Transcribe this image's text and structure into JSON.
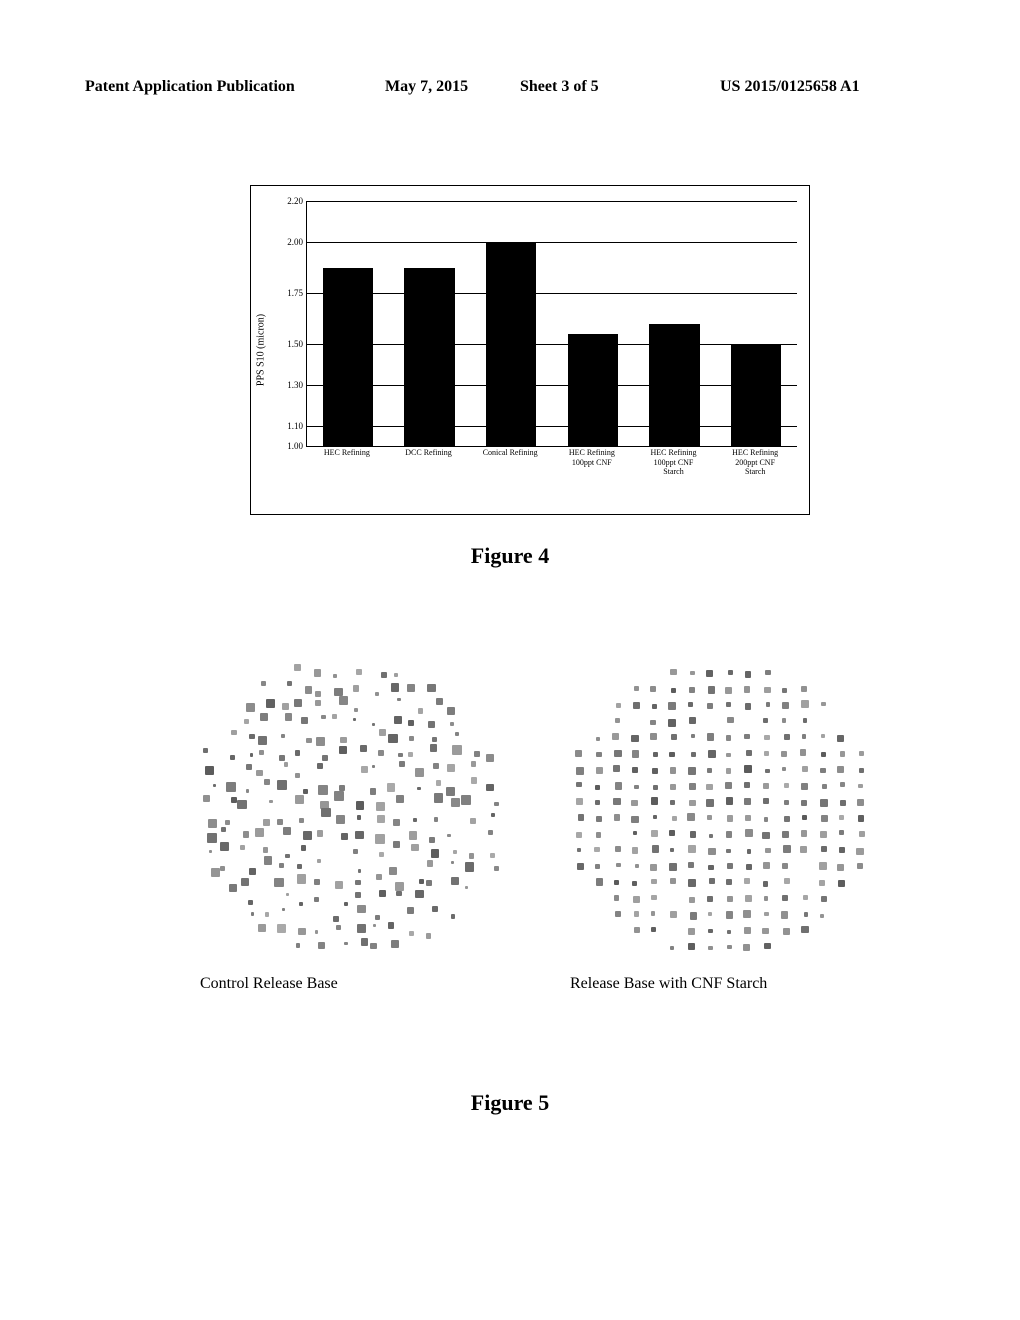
{
  "header": {
    "publication": "Patent Application Publication",
    "date": "May 7, 2015",
    "sheet": "Sheet 3 of 5",
    "patno": "US 2015/0125658 A1"
  },
  "fig4": {
    "caption": "Figure 4",
    "y_axis_title": "PPS S10 (micron)",
    "ymin": 1.0,
    "ymax": 2.2,
    "yticks": [
      1.0,
      1.1,
      1.3,
      1.5,
      1.75,
      2.0,
      2.2
    ],
    "ytick_labels": [
      "1.00",
      "1.10",
      "1.30",
      "1.50",
      "1.75",
      "2.00",
      "2.20"
    ],
    "bar_color": "#000000",
    "gridline_color": "#000000",
    "categories": [
      {
        "label": "HEC Refining",
        "value": 1.87
      },
      {
        "label": "DCC Refining",
        "value": 1.87
      },
      {
        "label": "Conical Refining",
        "value": 2.0
      },
      {
        "label": "HEC Refining 100ppt CNF",
        "value": 1.55
      },
      {
        "label": "HEC Refining 100ppt CNF Starch",
        "value": 1.6
      },
      {
        "label": "HEC Refining 200ppt CNF Starch",
        "value": 1.5
      }
    ]
  },
  "fig5": {
    "caption": "Figure 5",
    "left_label": "Control Release Base",
    "right_label": "Release Base with CNF Starch",
    "left_seed": 12345,
    "right_seed": 67890,
    "rows": 18,
    "cols": 16,
    "dot_color": "#808080"
  }
}
